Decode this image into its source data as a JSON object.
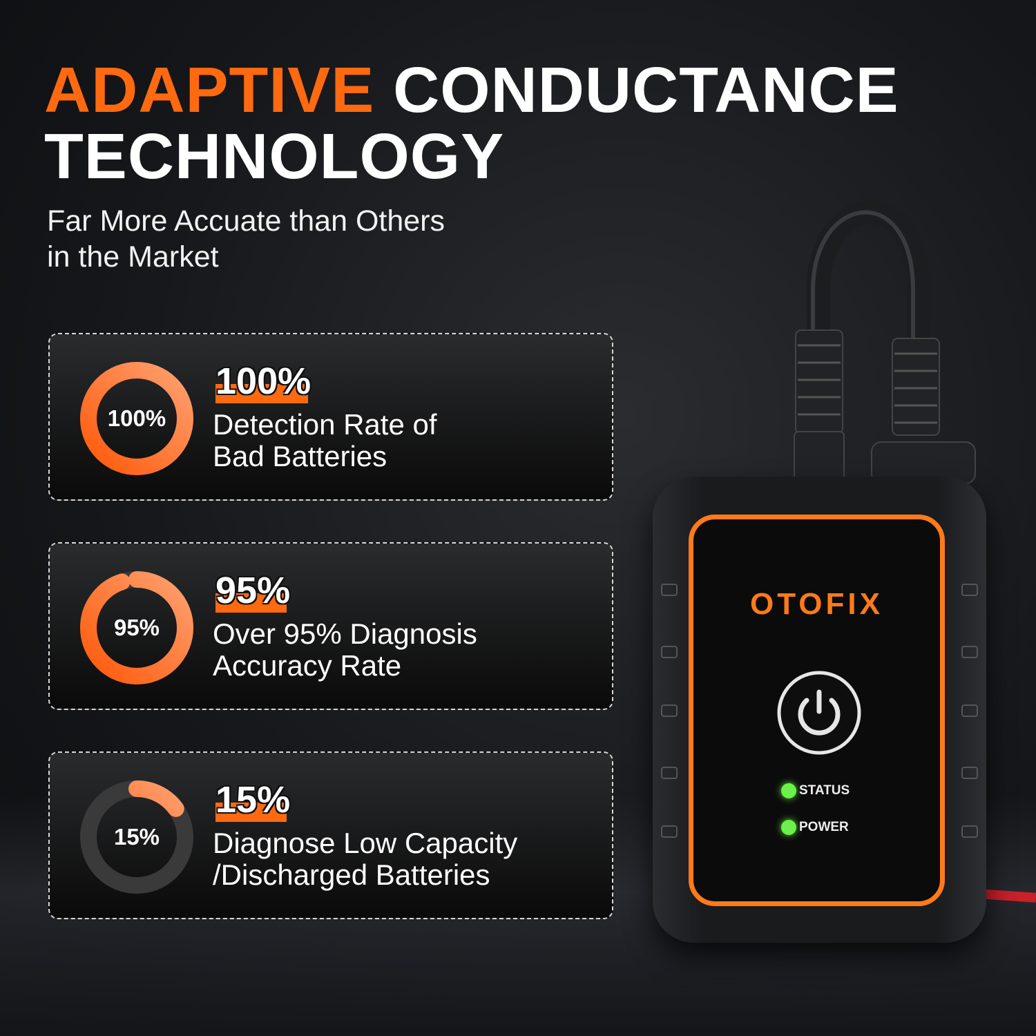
{
  "headline": {
    "accent": "ADAPTIVE",
    "rest_line1": "CONDUCTANCE",
    "line2": "TECHNOLOGY"
  },
  "subtitle": {
    "line1": "Far More Accuate than Others",
    "line2": "in the Market"
  },
  "colors": {
    "accent": "#ff6a10",
    "ring_track": "#3a3a3a",
    "led": "#6df04a"
  },
  "stats": [
    {
      "ring_label": "100%",
      "value": "100%",
      "percent": 100,
      "desc1": "Detection Rate of",
      "desc2": "Bad Batteries"
    },
    {
      "ring_label": "95%",
      "value": "95%",
      "percent": 95,
      "desc1": "Over 95% Diagnosis",
      "desc2": "Accuracy Rate"
    },
    {
      "ring_label": "15%",
      "value": "15%",
      "percent": 15,
      "desc1": "Diagnose Low Capacity",
      "desc2": "/Discharged Batteries"
    }
  ],
  "device": {
    "brand": "OTOFIX",
    "icon": "power-icon",
    "led1": "STATUS",
    "led2": "POWER"
  }
}
